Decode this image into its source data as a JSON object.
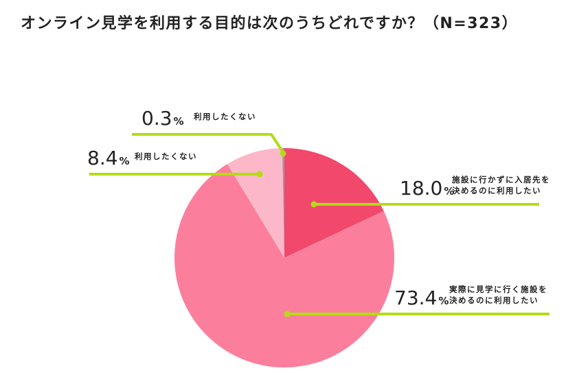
{
  "chart_data": {
    "type": "pie",
    "title": "オンライン見学を利用する目的は次のうちどれですか？（N=323）",
    "percent_unit": "%",
    "slices": [
      {
        "label_lines": [
          "施設に行かずに入居先を",
          "決めるのに利用したい"
        ],
        "value": 18.0,
        "display": "18.0",
        "color": "#f1486c"
      },
      {
        "label_lines": [
          "実際に見学に行く施設を",
          "決めるのに利用したい"
        ],
        "value": 73.4,
        "display": "73.4",
        "color": "#fb7f9c"
      },
      {
        "label_lines": [
          "利用したくない"
        ],
        "value": 8.4,
        "display": "8.4",
        "color": "#fcb8c8"
      },
      {
        "label_lines": [
          "利用したくない"
        ],
        "value": 0.3,
        "display": "0.3",
        "color": "#9a9a9a"
      }
    ],
    "leader_color": "#b4dc14"
  }
}
